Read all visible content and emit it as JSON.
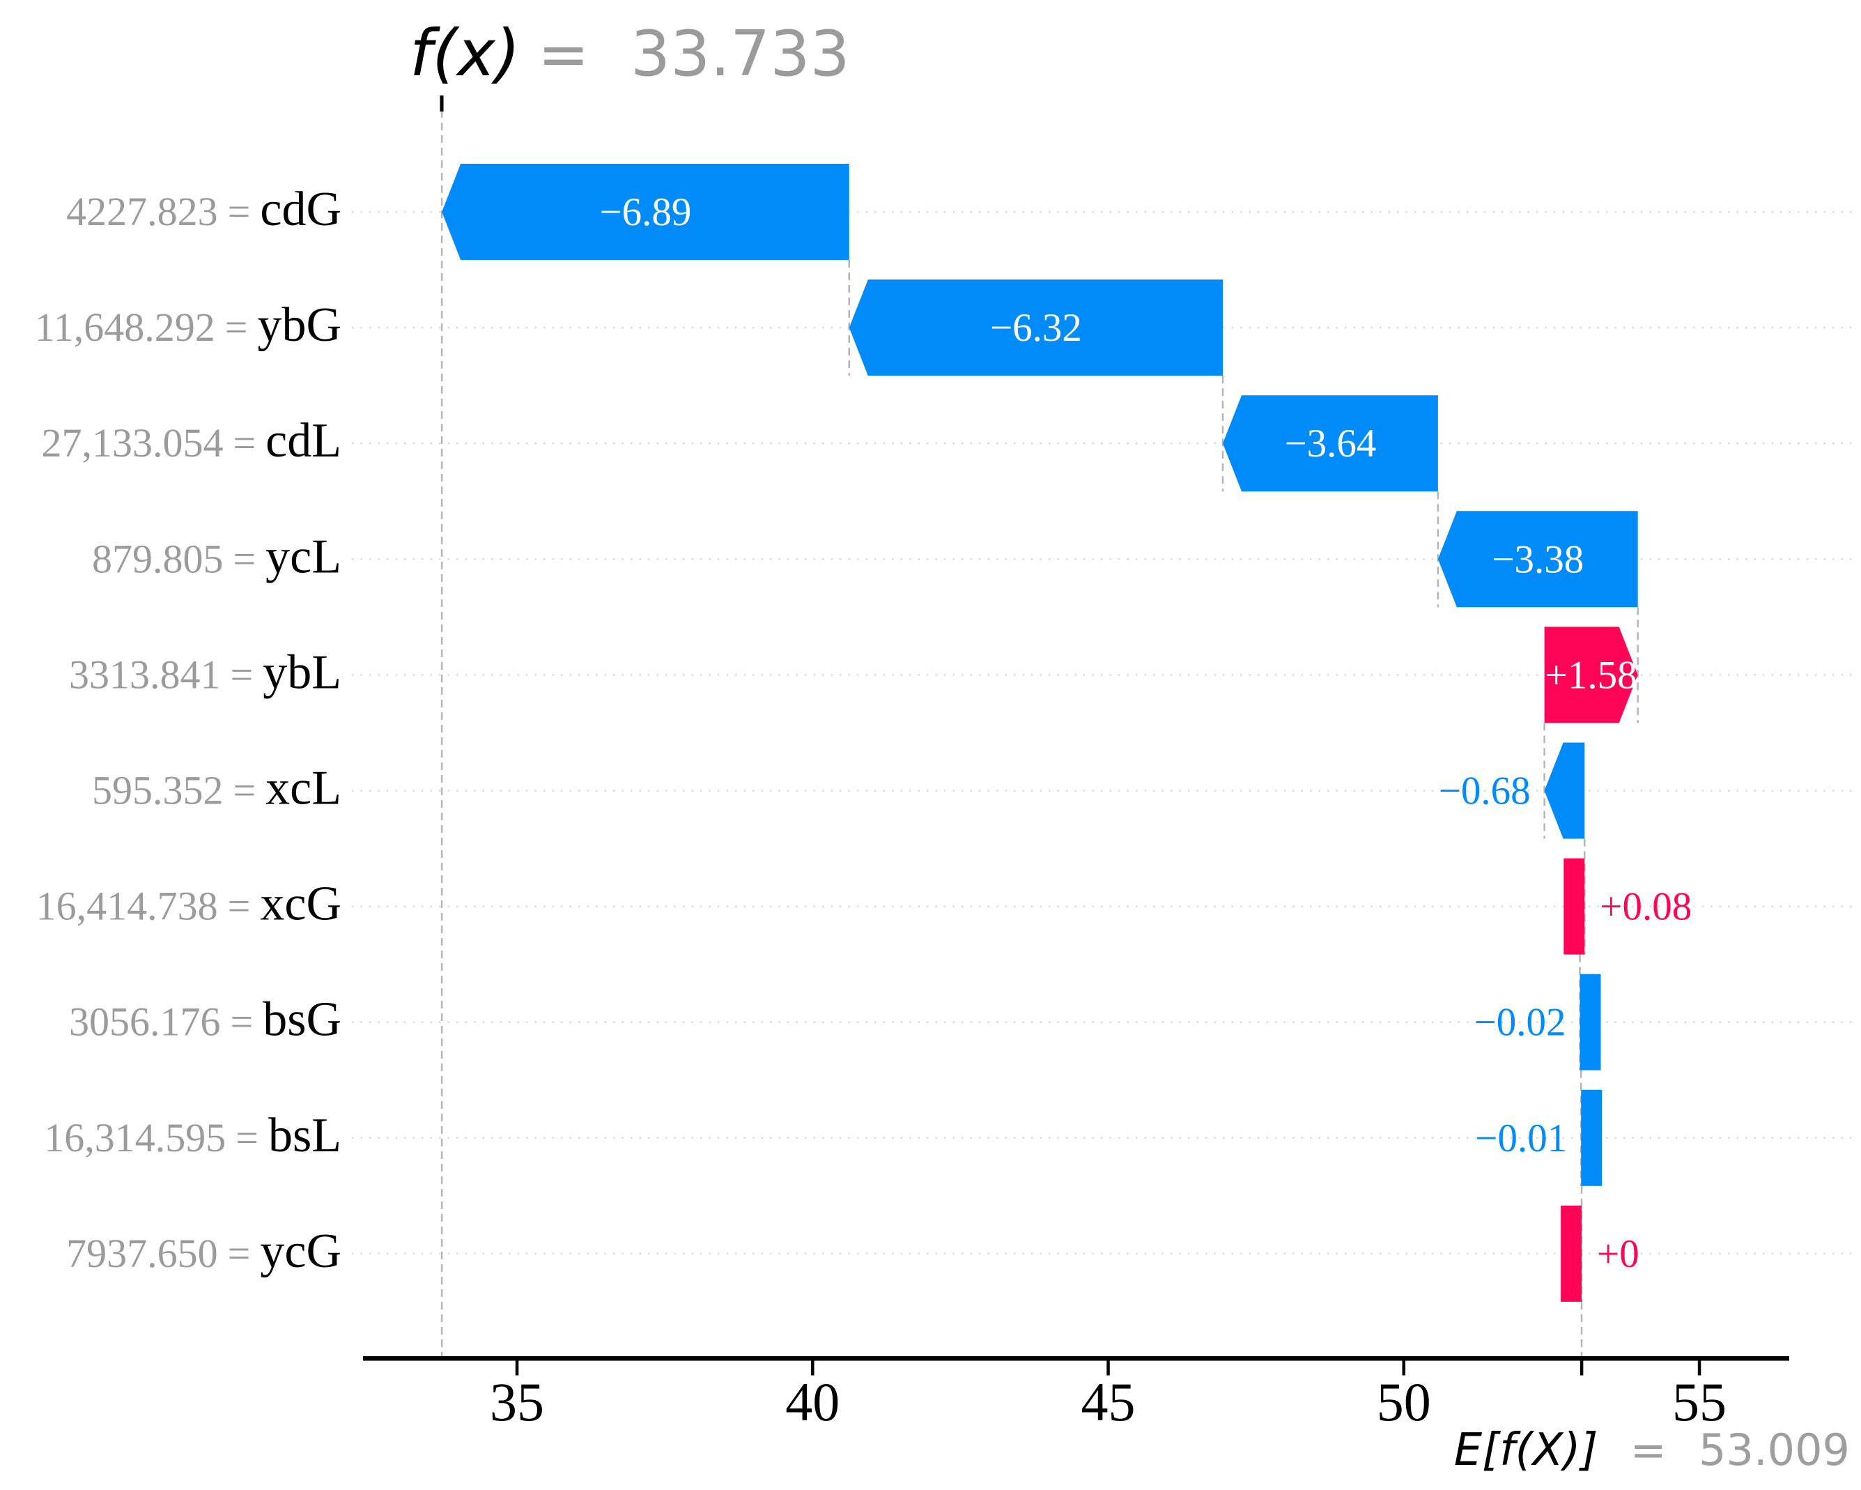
{
  "title": {
    "fx_label": "f(x)",
    "equals": "=",
    "value": "33.733"
  },
  "footer": {
    "efx_label": "E[f(X)]",
    "equals": "=",
    "value": "53.009"
  },
  "colors": {
    "positive": "#ff0457",
    "negative": "#008bfb",
    "inside_label": "#ffffff",
    "value_gray": "#9b9b9b",
    "feature_black": "#000000",
    "gridline": "#d9d9d9",
    "connector": "#b5b5b5",
    "axis": "#000000"
  },
  "chart_data": {
    "type": "waterfall",
    "title": "f(x) = 33.733",
    "base_value": 53.009,
    "fx_value": 33.733,
    "base_label": "E[f(X)] = 53.009",
    "xticks": [
      35,
      40,
      45,
      50,
      55
    ],
    "xlim": [
      32.4,
      56.7
    ],
    "grid": "dotted-row-lines",
    "legend": "none",
    "equals_sign": "=",
    "rows": [
      {
        "feature": "cdG",
        "value_label": "4227.823",
        "shap": -6.89,
        "shap_label": "−6.89"
      },
      {
        "feature": "ybG",
        "value_label": "11,648.292",
        "shap": -6.32,
        "shap_label": "−6.32"
      },
      {
        "feature": "cdL",
        "value_label": "27,133.054",
        "shap": -3.64,
        "shap_label": "−3.64"
      },
      {
        "feature": "ycL",
        "value_label": "879.805",
        "shap": -3.38,
        "shap_label": "−3.38"
      },
      {
        "feature": "ybL",
        "value_label": "3313.841",
        "shap": 1.58,
        "shap_label": "+1.58"
      },
      {
        "feature": "xcL",
        "value_label": "595.352",
        "shap": -0.68,
        "shap_label": "−0.68"
      },
      {
        "feature": "xcG",
        "value_label": "16,414.738",
        "shap": 0.08,
        "shap_label": "+0.08"
      },
      {
        "feature": "bsG",
        "value_label": "3056.176",
        "shap": -0.02,
        "shap_label": "−0.02"
      },
      {
        "feature": "bsL",
        "value_label": "16,314.595",
        "shap": -0.01,
        "shap_label": "−0.01"
      },
      {
        "feature": "ycG",
        "value_label": "7937.650",
        "shap": 0,
        "shap_label": "+0"
      }
    ]
  }
}
